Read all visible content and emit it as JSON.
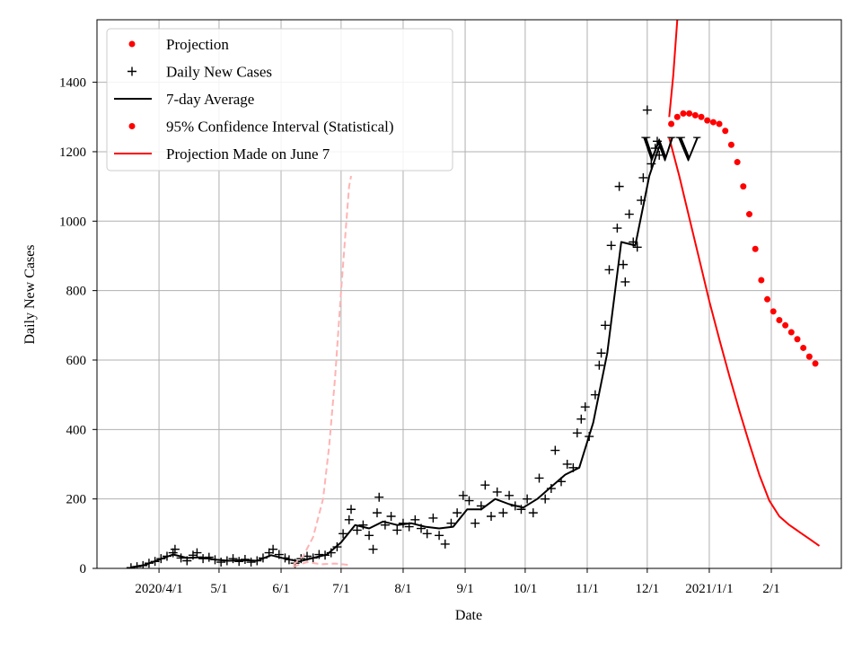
{
  "chart_data": {
    "type": "line",
    "xlabel": "Date",
    "ylabel": "Daily New Cases",
    "x_unit": "date",
    "xlim": [
      "2020-03-01",
      "2021-03-08"
    ],
    "ylim": [
      0,
      1580
    ],
    "grid": true,
    "legend_position": "top-left",
    "annotation": "WV",
    "annotation_date": "2020-12-13",
    "annotation_value": 1210,
    "x_ticks": [
      {
        "date": "2020-04-01",
        "label": "2020/4/1"
      },
      {
        "date": "2020-05-01",
        "label": "5/1"
      },
      {
        "date": "2020-06-01",
        "label": "6/1"
      },
      {
        "date": "2020-07-01",
        "label": "7/1"
      },
      {
        "date": "2020-08-01",
        "label": "8/1"
      },
      {
        "date": "2020-09-01",
        "label": "9/1"
      },
      {
        "date": "2020-10-01",
        "label": "10/1"
      },
      {
        "date": "2020-11-01",
        "label": "11/1"
      },
      {
        "date": "2020-12-01",
        "label": "12/1"
      },
      {
        "date": "2021-01-01",
        "label": "2021/1/1"
      },
      {
        "date": "2021-02-01",
        "label": "2/1"
      }
    ],
    "y_ticks": [
      0,
      200,
      400,
      600,
      800,
      1000,
      1200,
      1400
    ],
    "legend": [
      {
        "label": "Projection",
        "marker": "dot",
        "color": "#ff0000"
      },
      {
        "label": "Daily New Cases",
        "marker": "plus",
        "color": "#000000"
      },
      {
        "label": "7-day Average",
        "marker": "line",
        "color": "#000000"
      },
      {
        "label": "95% Confidence Interval (Statistical)",
        "marker": "dot",
        "color": "#ff0000"
      },
      {
        "label": "Projection Made on June 7",
        "marker": "line",
        "color": "#ff0000"
      }
    ],
    "series": [
      {
        "name": "Daily New Cases",
        "style": "plus",
        "color": "#000000",
        "points": [
          [
            "2020-03-18",
            2
          ],
          [
            "2020-03-21",
            5
          ],
          [
            "2020-03-24",
            8
          ],
          [
            "2020-03-27",
            15
          ],
          [
            "2020-03-30",
            20
          ],
          [
            "2020-04-02",
            28
          ],
          [
            "2020-04-05",
            35
          ],
          [
            "2020-04-08",
            45
          ],
          [
            "2020-04-09",
            55
          ],
          [
            "2020-04-12",
            30
          ],
          [
            "2020-04-15",
            22
          ],
          [
            "2020-04-18",
            38
          ],
          [
            "2020-04-20",
            45
          ],
          [
            "2020-04-23",
            28
          ],
          [
            "2020-04-26",
            32
          ],
          [
            "2020-04-29",
            25
          ],
          [
            "2020-05-02",
            18
          ],
          [
            "2020-05-05",
            22
          ],
          [
            "2020-05-08",
            28
          ],
          [
            "2020-05-11",
            20
          ],
          [
            "2020-05-14",
            26
          ],
          [
            "2020-05-17",
            18
          ],
          [
            "2020-05-20",
            22
          ],
          [
            "2020-05-23",
            30
          ],
          [
            "2020-05-26",
            45
          ],
          [
            "2020-05-28",
            55
          ],
          [
            "2020-05-31",
            40
          ],
          [
            "2020-06-03",
            30
          ],
          [
            "2020-06-05",
            25
          ],
          [
            "2020-06-08",
            15
          ],
          [
            "2020-06-11",
            28
          ],
          [
            "2020-06-14",
            35
          ],
          [
            "2020-06-17",
            30
          ],
          [
            "2020-06-20",
            40
          ],
          [
            "2020-06-23",
            38
          ],
          [
            "2020-06-26",
            45
          ],
          [
            "2020-06-29",
            62
          ],
          [
            "2020-07-02",
            100
          ],
          [
            "2020-07-05",
            140
          ],
          [
            "2020-07-06",
            170
          ],
          [
            "2020-07-09",
            110
          ],
          [
            "2020-07-12",
            125
          ],
          [
            "2020-07-15",
            95
          ],
          [
            "2020-07-17",
            55
          ],
          [
            "2020-07-19",
            160
          ],
          [
            "2020-07-20",
            205
          ],
          [
            "2020-07-23",
            125
          ],
          [
            "2020-07-26",
            150
          ],
          [
            "2020-07-29",
            110
          ],
          [
            "2020-08-01",
            130
          ],
          [
            "2020-08-04",
            120
          ],
          [
            "2020-08-07",
            140
          ],
          [
            "2020-08-10",
            115
          ],
          [
            "2020-08-13",
            100
          ],
          [
            "2020-08-16",
            145
          ],
          [
            "2020-08-19",
            95
          ],
          [
            "2020-08-22",
            70
          ],
          [
            "2020-08-25",
            130
          ],
          [
            "2020-08-28",
            160
          ],
          [
            "2020-08-31",
            210
          ],
          [
            "2020-09-03",
            195
          ],
          [
            "2020-09-06",
            130
          ],
          [
            "2020-09-09",
            180
          ],
          [
            "2020-09-11",
            240
          ],
          [
            "2020-09-14",
            150
          ],
          [
            "2020-09-17",
            220
          ],
          [
            "2020-09-20",
            160
          ],
          [
            "2020-09-23",
            210
          ],
          [
            "2020-09-26",
            180
          ],
          [
            "2020-09-29",
            170
          ],
          [
            "2020-10-02",
            200
          ],
          [
            "2020-10-05",
            160
          ],
          [
            "2020-10-08",
            260
          ],
          [
            "2020-10-11",
            200
          ],
          [
            "2020-10-14",
            230
          ],
          [
            "2020-10-16",
            340
          ],
          [
            "2020-10-19",
            250
          ],
          [
            "2020-10-22",
            300
          ],
          [
            "2020-10-25",
            290
          ],
          [
            "2020-10-27",
            390
          ],
          [
            "2020-10-29",
            430
          ],
          [
            "2020-10-31",
            465
          ],
          [
            "2020-11-02",
            380
          ],
          [
            "2020-11-05",
            500
          ],
          [
            "2020-11-07",
            585
          ],
          [
            "2020-11-08",
            620
          ],
          [
            "2020-11-10",
            700
          ],
          [
            "2020-11-12",
            860
          ],
          [
            "2020-11-13",
            930
          ],
          [
            "2020-11-16",
            980
          ],
          [
            "2020-11-17",
            1100
          ],
          [
            "2020-11-19",
            875
          ],
          [
            "2020-11-20",
            825
          ],
          [
            "2020-11-22",
            1020
          ],
          [
            "2020-11-24",
            940
          ],
          [
            "2020-11-26",
            925
          ],
          [
            "2020-11-28",
            1060
          ],
          [
            "2020-11-29",
            1125
          ],
          [
            "2020-12-01",
            1320
          ],
          [
            "2020-12-03",
            1165
          ],
          [
            "2020-12-05",
            1210
          ],
          [
            "2020-12-06",
            1230
          ],
          [
            "2020-12-07",
            1190
          ]
        ]
      },
      {
        "name": "7-day Average",
        "style": "line",
        "color": "#000000",
        "points": [
          [
            "2020-03-18",
            3
          ],
          [
            "2020-03-25",
            10
          ],
          [
            "2020-04-01",
            25
          ],
          [
            "2020-04-08",
            40
          ],
          [
            "2020-04-15",
            30
          ],
          [
            "2020-04-22",
            32
          ],
          [
            "2020-04-29",
            25
          ],
          [
            "2020-05-06",
            22
          ],
          [
            "2020-05-13",
            24
          ],
          [
            "2020-05-20",
            22
          ],
          [
            "2020-05-27",
            38
          ],
          [
            "2020-06-03",
            28
          ],
          [
            "2020-06-10",
            20
          ],
          [
            "2020-06-17",
            30
          ],
          [
            "2020-06-24",
            40
          ],
          [
            "2020-07-01",
            75
          ],
          [
            "2020-07-08",
            125
          ],
          [
            "2020-07-15",
            115
          ],
          [
            "2020-07-22",
            135
          ],
          [
            "2020-07-29",
            125
          ],
          [
            "2020-08-05",
            130
          ],
          [
            "2020-08-12",
            120
          ],
          [
            "2020-08-19",
            115
          ],
          [
            "2020-08-26",
            120
          ],
          [
            "2020-09-02",
            170
          ],
          [
            "2020-09-09",
            170
          ],
          [
            "2020-09-16",
            200
          ],
          [
            "2020-09-23",
            185
          ],
          [
            "2020-09-30",
            175
          ],
          [
            "2020-10-07",
            200
          ],
          [
            "2020-10-14",
            235
          ],
          [
            "2020-10-21",
            270
          ],
          [
            "2020-10-28",
            290
          ],
          [
            "2020-11-04",
            420
          ],
          [
            "2020-11-11",
            620
          ],
          [
            "2020-11-18",
            940
          ],
          [
            "2020-11-25",
            930
          ],
          [
            "2020-12-02",
            1130
          ],
          [
            "2020-12-07",
            1215
          ]
        ]
      },
      {
        "name": "Projection",
        "style": "dots",
        "color": "#ff0000",
        "points": [
          [
            "2020-12-13",
            1280
          ],
          [
            "2020-12-16",
            1300
          ],
          [
            "2020-12-19",
            1310
          ],
          [
            "2020-12-22",
            1310
          ],
          [
            "2020-12-25",
            1305
          ],
          [
            "2020-12-28",
            1300
          ],
          [
            "2020-12-31",
            1290
          ],
          [
            "2021-01-03",
            1285
          ],
          [
            "2021-01-06",
            1280
          ],
          [
            "2021-01-09",
            1260
          ],
          [
            "2021-01-12",
            1220
          ],
          [
            "2021-01-15",
            1170
          ],
          [
            "2021-01-18",
            1100
          ],
          [
            "2021-01-21",
            1020
          ],
          [
            "2021-01-24",
            920
          ],
          [
            "2021-01-27",
            830
          ],
          [
            "2021-01-30",
            775
          ],
          [
            "2021-02-02",
            740
          ],
          [
            "2021-02-05",
            715
          ],
          [
            "2021-02-08",
            700
          ],
          [
            "2021-02-11",
            680
          ],
          [
            "2021-02-14",
            660
          ],
          [
            "2021-02-17",
            635
          ],
          [
            "2021-02-20",
            610
          ],
          [
            "2021-02-23",
            590
          ]
        ]
      },
      {
        "name": "95% Confidence Interval (Statistical)",
        "style": "line",
        "color": "#ff0000",
        "points": [
          [
            "2020-12-12",
            1300
          ],
          [
            "2020-12-14",
            1420
          ],
          [
            "2020-12-16",
            1580
          ]
        ]
      },
      {
        "name": "95% Confidence Interval (Statistical)",
        "style": "line",
        "color": "#ff0000",
        "points": [
          [
            "2020-12-12",
            1240
          ],
          [
            "2020-12-17",
            1130
          ],
          [
            "2020-12-22",
            1010
          ],
          [
            "2020-12-27",
            890
          ],
          [
            "2021-01-01",
            770
          ],
          [
            "2021-01-06",
            660
          ],
          [
            "2021-01-11",
            555
          ],
          [
            "2021-01-16",
            455
          ],
          [
            "2021-01-21",
            360
          ],
          [
            "2021-01-26",
            270
          ],
          [
            "2021-01-31",
            195
          ],
          [
            "2021-02-05",
            150
          ],
          [
            "2021-02-10",
            125
          ],
          [
            "2021-02-15",
            105
          ],
          [
            "2021-02-20",
            85
          ],
          [
            "2021-02-25",
            65
          ]
        ]
      },
      {
        "name": "Projection Made on June 7",
        "style": "dashed",
        "color": "#ffb3b3",
        "points": [
          [
            "2020-06-07",
            10
          ],
          [
            "2020-06-12",
            35
          ],
          [
            "2020-06-17",
            90
          ],
          [
            "2020-06-22",
            200
          ],
          [
            "2020-06-25",
            350
          ],
          [
            "2020-06-28",
            550
          ],
          [
            "2020-07-01",
            800
          ],
          [
            "2020-07-03",
            950
          ],
          [
            "2020-07-05",
            1100
          ],
          [
            "2020-07-06",
            1130
          ]
        ]
      },
      {
        "name": "Projection Made on June 7",
        "style": "dashed",
        "color": "#ffb3b3",
        "points": [
          [
            "2020-06-07",
            5
          ],
          [
            "2020-06-14",
            18
          ],
          [
            "2020-06-21",
            12
          ],
          [
            "2020-06-28",
            14
          ],
          [
            "2020-07-05",
            10
          ],
          [
            "2020-07-06",
            10
          ]
        ]
      }
    ]
  }
}
